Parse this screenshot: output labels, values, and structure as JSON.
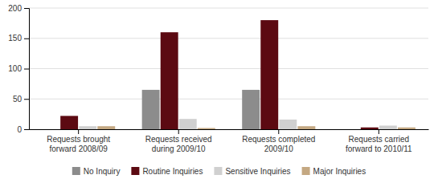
{
  "chart_data": {
    "type": "bar",
    "categories": [
      "Requests brought\nforward 2008/09",
      "Requests received\nduring 2009/10",
      "Requests completed\n2009/10",
      "Requests carried\nforward to 2010/11"
    ],
    "series": [
      {
        "name": "No Inquiry",
        "color": "#8c8c8c",
        "values": [
          0,
          65,
          65,
          0
        ]
      },
      {
        "name": "Routine Inquiries",
        "color": "#5c0a12",
        "values": [
          22,
          160,
          180,
          3
        ]
      },
      {
        "name": "Sensitive Inquiries",
        "color": "#d0d0d0",
        "values": [
          5,
          17,
          16,
          6
        ]
      },
      {
        "name": "Major Inquiries",
        "color": "#c4a882",
        "values": [
          5,
          2,
          5,
          3
        ]
      }
    ],
    "ylim": [
      0,
      200
    ],
    "yticks": [
      0,
      50,
      100,
      150,
      200
    ],
    "grid": true,
    "legend": "bottom"
  }
}
